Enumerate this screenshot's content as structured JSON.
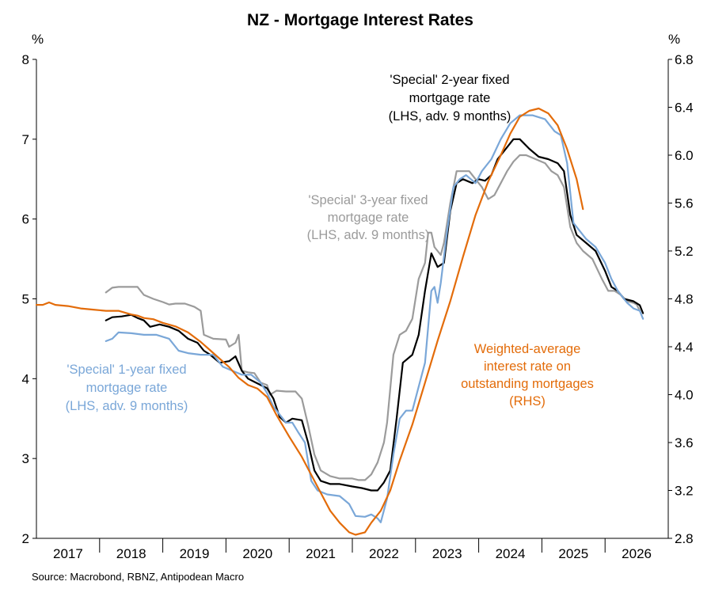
{
  "chart_data": {
    "type": "line",
    "title": "NZ - Mortgage Interest Rates",
    "left_axis": {
      "unit": "%",
      "ylim": [
        2,
        8
      ],
      "ticks": [
        "2",
        "3",
        "4",
        "5",
        "6",
        "7",
        "8"
      ]
    },
    "right_axis": {
      "unit": "%",
      "ylim": [
        2.8,
        6.8
      ],
      "ticks": [
        "2.8",
        "3.2",
        "3.6",
        "4.0",
        "4.4",
        "4.8",
        "5.2",
        "5.6",
        "6.0",
        "6.4",
        "6.8"
      ]
    },
    "x_labels": [
      "2017",
      "2018",
      "2019",
      "2020",
      "2021",
      "2022",
      "2023",
      "2024",
      "2025",
      "2026"
    ],
    "grid": false,
    "colors": {
      "one_year": "#7aa7d8",
      "two_year": "#000000",
      "three_year": "#9b9b9b",
      "weighted_avg": "#e36c0a"
    },
    "series": [
      {
        "name": "'Special' 3-year fixed mortgage rate (LHS, adv. 9 months)",
        "axis": "left",
        "points": [
          [
            2017.6,
            5.08
          ],
          [
            2017.7,
            5.14
          ],
          [
            2017.8,
            5.15
          ],
          [
            2018.0,
            5.15
          ],
          [
            2018.1,
            5.15
          ],
          [
            2018.2,
            5.05
          ],
          [
            2018.35,
            5.0
          ],
          [
            2018.5,
            4.96
          ],
          [
            2018.6,
            4.93
          ],
          [
            2018.7,
            4.94
          ],
          [
            2018.85,
            4.94
          ],
          [
            2019.0,
            4.9
          ],
          [
            2019.1,
            4.85
          ],
          [
            2019.15,
            4.55
          ],
          [
            2019.3,
            4.5
          ],
          [
            2019.5,
            4.49
          ],
          [
            2019.55,
            4.4
          ],
          [
            2019.65,
            4.45
          ],
          [
            2019.7,
            4.55
          ],
          [
            2019.75,
            4.1
          ],
          [
            2019.85,
            4.08
          ],
          [
            2019.95,
            4.07
          ],
          [
            2020.05,
            3.95
          ],
          [
            2020.15,
            3.92
          ],
          [
            2020.2,
            3.8
          ],
          [
            2020.3,
            3.85
          ],
          [
            2020.45,
            3.84
          ],
          [
            2020.6,
            3.84
          ],
          [
            2020.7,
            3.75
          ],
          [
            2020.8,
            3.42
          ],
          [
            2020.9,
            3.05
          ],
          [
            2021.0,
            2.85
          ],
          [
            2021.15,
            2.78
          ],
          [
            2021.3,
            2.75
          ],
          [
            2021.5,
            2.75
          ],
          [
            2021.6,
            2.73
          ],
          [
            2021.7,
            2.73
          ],
          [
            2021.8,
            2.8
          ],
          [
            2021.9,
            2.95
          ],
          [
            2022.0,
            3.2
          ],
          [
            2022.05,
            3.45
          ],
          [
            2022.15,
            4.3
          ],
          [
            2022.25,
            4.55
          ],
          [
            2022.35,
            4.6
          ],
          [
            2022.45,
            4.75
          ],
          [
            2022.55,
            5.25
          ],
          [
            2022.6,
            5.35
          ],
          [
            2022.65,
            5.45
          ],
          [
            2022.7,
            5.83
          ],
          [
            2022.75,
            5.83
          ],
          [
            2022.8,
            5.65
          ],
          [
            2022.9,
            5.55
          ],
          [
            2022.95,
            5.7
          ],
          [
            2023.05,
            6.2
          ],
          [
            2023.15,
            6.6
          ],
          [
            2023.25,
            6.6
          ],
          [
            2023.35,
            6.6
          ],
          [
            2023.45,
            6.5
          ],
          [
            2023.55,
            6.4
          ],
          [
            2023.65,
            6.25
          ],
          [
            2023.75,
            6.3
          ],
          [
            2023.85,
            6.45
          ],
          [
            2023.95,
            6.6
          ],
          [
            2024.05,
            6.72
          ],
          [
            2024.15,
            6.8
          ],
          [
            2024.25,
            6.8
          ],
          [
            2024.4,
            6.75
          ],
          [
            2024.55,
            6.7
          ],
          [
            2024.65,
            6.6
          ],
          [
            2024.75,
            6.55
          ],
          [
            2024.85,
            6.4
          ],
          [
            2024.95,
            5.9
          ],
          [
            2025.05,
            5.7
          ],
          [
            2025.15,
            5.6
          ],
          [
            2025.3,
            5.5
          ],
          [
            2025.45,
            5.25
          ],
          [
            2025.55,
            5.1
          ],
          [
            2025.65,
            5.1
          ],
          [
            2025.75,
            5.05
          ],
          [
            2025.85,
            4.97
          ],
          [
            2025.95,
            4.95
          ],
          [
            2026.0,
            4.93
          ],
          [
            2026.05,
            4.85
          ]
        ]
      },
      {
        "name": "'Special' 2-year fixed mortgage rate (LHS, adv. 9 months)",
        "axis": "left",
        "points": [
          [
            2017.6,
            4.73
          ],
          [
            2017.7,
            4.77
          ],
          [
            2017.85,
            4.78
          ],
          [
            2018.0,
            4.8
          ],
          [
            2018.1,
            4.76
          ],
          [
            2018.2,
            4.73
          ],
          [
            2018.3,
            4.65
          ],
          [
            2018.45,
            4.68
          ],
          [
            2018.6,
            4.65
          ],
          [
            2018.75,
            4.6
          ],
          [
            2018.9,
            4.5
          ],
          [
            2019.05,
            4.45
          ],
          [
            2019.15,
            4.35
          ],
          [
            2019.25,
            4.3
          ],
          [
            2019.4,
            4.2
          ],
          [
            2019.55,
            4.22
          ],
          [
            2019.65,
            4.28
          ],
          [
            2019.75,
            4.1
          ],
          [
            2019.85,
            4.0
          ],
          [
            2019.95,
            3.96
          ],
          [
            2020.05,
            3.92
          ],
          [
            2020.15,
            3.88
          ],
          [
            2020.25,
            3.75
          ],
          [
            2020.35,
            3.52
          ],
          [
            2020.45,
            3.45
          ],
          [
            2020.55,
            3.5
          ],
          [
            2020.7,
            3.48
          ],
          [
            2020.8,
            3.2
          ],
          [
            2020.9,
            2.85
          ],
          [
            2021.0,
            2.72
          ],
          [
            2021.15,
            2.68
          ],
          [
            2021.3,
            2.68
          ],
          [
            2021.5,
            2.65
          ],
          [
            2021.65,
            2.63
          ],
          [
            2021.8,
            2.6
          ],
          [
            2021.9,
            2.6
          ],
          [
            2022.0,
            2.7
          ],
          [
            2022.1,
            2.85
          ],
          [
            2022.2,
            3.5
          ],
          [
            2022.3,
            4.2
          ],
          [
            2022.45,
            4.3
          ],
          [
            2022.55,
            4.55
          ],
          [
            2022.65,
            5.1
          ],
          [
            2022.75,
            5.57
          ],
          [
            2022.85,
            5.4
          ],
          [
            2022.95,
            5.45
          ],
          [
            2023.05,
            6.1
          ],
          [
            2023.15,
            6.45
          ],
          [
            2023.25,
            6.5
          ],
          [
            2023.4,
            6.45
          ],
          [
            2023.5,
            6.5
          ],
          [
            2023.6,
            6.48
          ],
          [
            2023.7,
            6.55
          ],
          [
            2023.8,
            6.75
          ],
          [
            2023.95,
            6.9
          ],
          [
            2024.05,
            7.0
          ],
          [
            2024.15,
            7.0
          ],
          [
            2024.3,
            6.88
          ],
          [
            2024.45,
            6.78
          ],
          [
            2024.6,
            6.75
          ],
          [
            2024.75,
            6.7
          ],
          [
            2024.85,
            6.6
          ],
          [
            2024.95,
            6.05
          ],
          [
            2025.05,
            5.8
          ],
          [
            2025.2,
            5.7
          ],
          [
            2025.35,
            5.6
          ],
          [
            2025.5,
            5.35
          ],
          [
            2025.6,
            5.15
          ],
          [
            2025.7,
            5.1
          ],
          [
            2025.8,
            5.0
          ],
          [
            2025.95,
            4.97
          ],
          [
            2026.05,
            4.92
          ],
          [
            2026.1,
            4.82
          ]
        ]
      },
      {
        "name": "'Special' 1-year fixed mortgage rate (LHS, adv. 9 months)",
        "axis": "left",
        "points": [
          [
            2017.6,
            4.47
          ],
          [
            2017.7,
            4.5
          ],
          [
            2017.8,
            4.58
          ],
          [
            2018.0,
            4.57
          ],
          [
            2018.2,
            4.55
          ],
          [
            2018.4,
            4.55
          ],
          [
            2018.6,
            4.5
          ],
          [
            2018.75,
            4.35
          ],
          [
            2018.9,
            4.32
          ],
          [
            2019.1,
            4.3
          ],
          [
            2019.3,
            4.3
          ],
          [
            2019.45,
            4.15
          ],
          [
            2019.6,
            4.1
          ],
          [
            2019.75,
            4.05
          ],
          [
            2019.9,
            4.05
          ],
          [
            2020.05,
            3.95
          ],
          [
            2020.15,
            3.82
          ],
          [
            2020.25,
            3.65
          ],
          [
            2020.35,
            3.55
          ],
          [
            2020.45,
            3.45
          ],
          [
            2020.55,
            3.45
          ],
          [
            2020.65,
            3.32
          ],
          [
            2020.75,
            3.2
          ],
          [
            2020.85,
            2.72
          ],
          [
            2020.95,
            2.6
          ],
          [
            2021.1,
            2.55
          ],
          [
            2021.3,
            2.53
          ],
          [
            2021.45,
            2.43
          ],
          [
            2021.55,
            2.28
          ],
          [
            2021.7,
            2.27
          ],
          [
            2021.8,
            2.3
          ],
          [
            2021.9,
            2.25
          ],
          [
            2021.95,
            2.2
          ],
          [
            2022.05,
            2.5
          ],
          [
            2022.15,
            3.05
          ],
          [
            2022.25,
            3.5
          ],
          [
            2022.35,
            3.6
          ],
          [
            2022.45,
            3.6
          ],
          [
            2022.55,
            3.9
          ],
          [
            2022.65,
            4.2
          ],
          [
            2022.75,
            5.1
          ],
          [
            2022.8,
            5.15
          ],
          [
            2022.85,
            4.95
          ],
          [
            2022.9,
            5.2
          ],
          [
            2023.0,
            5.85
          ],
          [
            2023.1,
            6.4
          ],
          [
            2023.2,
            6.5
          ],
          [
            2023.3,
            6.55
          ],
          [
            2023.45,
            6.45
          ],
          [
            2023.55,
            6.6
          ],
          [
            2023.7,
            6.75
          ],
          [
            2023.85,
            7.0
          ],
          [
            2024.0,
            7.2
          ],
          [
            2024.15,
            7.3
          ],
          [
            2024.35,
            7.3
          ],
          [
            2024.55,
            7.25
          ],
          [
            2024.7,
            7.1
          ],
          [
            2024.8,
            7.05
          ],
          [
            2024.9,
            6.7
          ],
          [
            2025.0,
            5.95
          ],
          [
            2025.1,
            5.85
          ],
          [
            2025.2,
            5.75
          ],
          [
            2025.35,
            5.65
          ],
          [
            2025.5,
            5.45
          ],
          [
            2025.6,
            5.25
          ],
          [
            2025.7,
            5.1
          ],
          [
            2025.85,
            4.95
          ],
          [
            2025.95,
            4.88
          ],
          [
            2026.05,
            4.85
          ],
          [
            2026.1,
            4.75
          ]
        ]
      },
      {
        "name": "Weighted-average interest rate on outstanding mortgages (RHS)",
        "axis": "right",
        "points": [
          [
            2016.5,
            4.75
          ],
          [
            2016.6,
            4.75
          ],
          [
            2016.7,
            4.77
          ],
          [
            2016.8,
            4.75
          ],
          [
            2017.0,
            4.74
          ],
          [
            2017.2,
            4.72
          ],
          [
            2017.4,
            4.71
          ],
          [
            2017.6,
            4.7
          ],
          [
            2017.8,
            4.7
          ],
          [
            2018.0,
            4.67
          ],
          [
            2018.1,
            4.66
          ],
          [
            2018.2,
            4.64
          ],
          [
            2018.35,
            4.63
          ],
          [
            2018.5,
            4.6
          ],
          [
            2018.7,
            4.57
          ],
          [
            2018.9,
            4.52
          ],
          [
            2019.1,
            4.44
          ],
          [
            2019.25,
            4.37
          ],
          [
            2019.4,
            4.3
          ],
          [
            2019.55,
            4.23
          ],
          [
            2019.7,
            4.14
          ],
          [
            2019.85,
            4.08
          ],
          [
            2020.0,
            4.05
          ],
          [
            2020.15,
            3.98
          ],
          [
            2020.3,
            3.83
          ],
          [
            2020.5,
            3.65
          ],
          [
            2020.7,
            3.48
          ],
          [
            2020.85,
            3.33
          ],
          [
            2021.0,
            3.18
          ],
          [
            2021.15,
            3.03
          ],
          [
            2021.3,
            2.93
          ],
          [
            2021.45,
            2.85
          ],
          [
            2021.55,
            2.83
          ],
          [
            2021.7,
            2.85
          ],
          [
            2021.8,
            2.93
          ],
          [
            2021.95,
            3.03
          ],
          [
            2022.1,
            3.2
          ],
          [
            2022.25,
            3.45
          ],
          [
            2022.45,
            3.75
          ],
          [
            2022.65,
            4.1
          ],
          [
            2022.85,
            4.45
          ],
          [
            2023.05,
            4.78
          ],
          [
            2023.25,
            5.15
          ],
          [
            2023.45,
            5.5
          ],
          [
            2023.65,
            5.78
          ],
          [
            2023.85,
            6.0
          ],
          [
            2024.0,
            6.18
          ],
          [
            2024.15,
            6.32
          ],
          [
            2024.3,
            6.37
          ],
          [
            2024.45,
            6.39
          ],
          [
            2024.6,
            6.35
          ],
          [
            2024.75,
            6.25
          ],
          [
            2024.9,
            6.05
          ],
          [
            2025.05,
            5.8
          ],
          [
            2025.15,
            5.55
          ]
        ]
      }
    ]
  },
  "annotations": {
    "one_year": [
      "'Special' 1-year fixed",
      "mortgage rate",
      "(LHS, adv. 9 months)"
    ],
    "two_year": [
      "'Special' 2-year fixed",
      "mortgage rate",
      "(LHS, adv. 9 months)"
    ],
    "three_year": [
      "'Special' 3-year fixed",
      "mortgage rate",
      "(LHS, adv. 9 months)"
    ],
    "weighted_avg": [
      "Weighted-average",
      "interest rate on",
      "outstanding mortgages",
      "(RHS)"
    ]
  },
  "source": "Source: Macrobond, RBNZ, Antipodean Macro"
}
